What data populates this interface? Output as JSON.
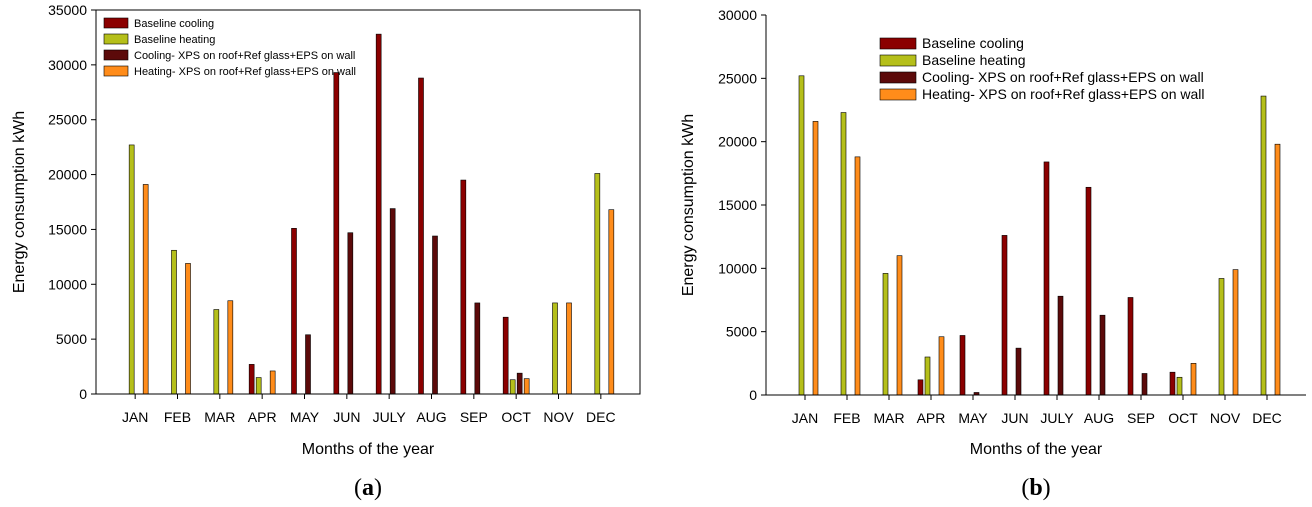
{
  "colors": {
    "baseline_cooling": "#8b0000",
    "baseline_heating": "#b5bf1a",
    "cooling_xps": "#5c0a0a",
    "heating_xps": "#ff8c1a"
  },
  "chart_data": [
    {
      "panel_label": [
        "(",
        "a",
        ")"
      ],
      "type": "bar",
      "xlabel": "Months of the year",
      "ylabel": "Energy consumption kWh",
      "ylim": [
        0,
        35000
      ],
      "yticks": [
        0,
        5000,
        10000,
        15000,
        20000,
        25000,
        30000,
        35000
      ],
      "categories": [
        "JAN",
        "FEB",
        "MAR",
        "APR",
        "MAY",
        "JUN",
        "JULY",
        "AUG",
        "SEP",
        "OCT",
        "NOV",
        "DEC"
      ],
      "legend_position": "top-left",
      "series": [
        {
          "name": "Baseline cooling",
          "values": [
            0,
            0,
            0,
            2700,
            15100,
            29300,
            32800,
            28800,
            19500,
            7000,
            0,
            0
          ]
        },
        {
          "name": "Baseline heating",
          "values": [
            22700,
            13100,
            7700,
            1500,
            0,
            0,
            0,
            0,
            0,
            1300,
            8300,
            20100
          ]
        },
        {
          "name": "Cooling- XPS on roof+Ref glass+EPS on wall",
          "values": [
            0,
            0,
            0,
            0,
            5400,
            14700,
            16900,
            14400,
            8300,
            1900,
            0,
            0
          ]
        },
        {
          "name": "Heating- XPS on roof+Ref glass+EPS on wall",
          "values": [
            19100,
            11900,
            8500,
            2100,
            0,
            0,
            0,
            0,
            0,
            1400,
            8300,
            16800
          ]
        }
      ]
    },
    {
      "panel_label": [
        "(",
        "b",
        ")"
      ],
      "type": "bar",
      "xlabel": "Months of the year",
      "ylabel": "Energy consumption kWh",
      "ylim": [
        0,
        30000
      ],
      "yticks": [
        0,
        5000,
        10000,
        15000,
        20000,
        25000,
        30000
      ],
      "categories": [
        "JAN",
        "FEB",
        "MAR",
        "APR",
        "MAY",
        "JUN",
        "JULY",
        "AUG",
        "SEP",
        "OCT",
        "NOV",
        "DEC"
      ],
      "legend_position": "top-center",
      "series": [
        {
          "name": "Baseline cooling",
          "values": [
            0,
            0,
            0,
            1200,
            4700,
            12600,
            18400,
            16400,
            7700,
            1800,
            0,
            0
          ]
        },
        {
          "name": "Baseline heating",
          "values": [
            25200,
            22300,
            9600,
            3000,
            0,
            0,
            0,
            0,
            0,
            1400,
            9200,
            23600
          ]
        },
        {
          "name": "Cooling- XPS on roof+Ref glass+EPS on wall",
          "values": [
            0,
            0,
            0,
            0,
            200,
            3700,
            7800,
            6300,
            1700,
            0,
            0,
            0
          ]
        },
        {
          "name": "Heating- XPS on roof+Ref glass+EPS on wall",
          "values": [
            21600,
            18800,
            11000,
            4600,
            0,
            0,
            0,
            0,
            0,
            2500,
            9900,
            19800
          ]
        }
      ]
    }
  ]
}
